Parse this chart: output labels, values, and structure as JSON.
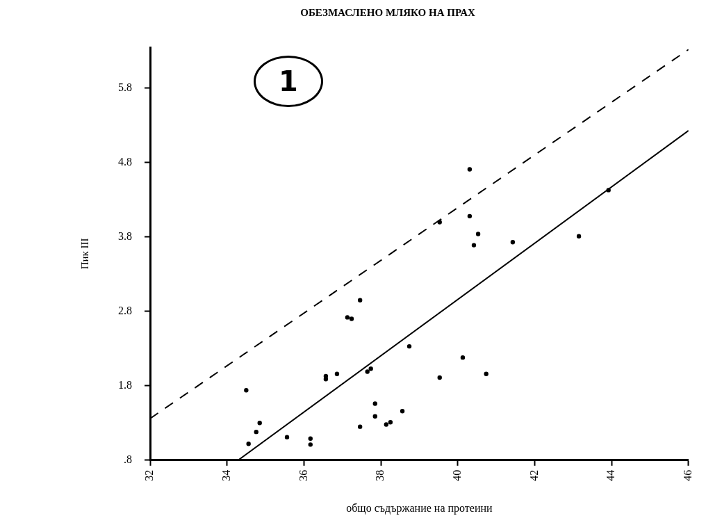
{
  "chart_data": {
    "type": "scatter",
    "title": "ОБЕЗМАСЛЕНО МЛЯКО НА ПРАХ",
    "xlabel": "общо съдържание на протеини",
    "ylabel": "Пик III",
    "annotations": [
      "1"
    ],
    "xlim": [
      32,
      46
    ],
    "xticks": [
      32,
      34,
      36,
      38,
      40,
      42,
      44,
      46
    ],
    "ylim": [
      0.8,
      6.35
    ],
    "yticks": [
      {
        "value": 0.8,
        "label": ".8"
      },
      1.8,
      2.8,
      3.8,
      4.8,
      5.8
    ],
    "grid": false,
    "legend": false,
    "marker": "circle",
    "series": [
      {
        "color": "#000000",
        "x": [
          34.5,
          34.56,
          34.76,
          34.85,
          35.56,
          36.17,
          36.17,
          36.57,
          36.57,
          36.86,
          37.13,
          37.24,
          37.46,
          37.46,
          37.65,
          37.74,
          37.85,
          37.85,
          38.14,
          38.25,
          38.56,
          38.74,
          39.53,
          40.13,
          40.74,
          39.53,
          40.31,
          40.31,
          40.42,
          40.53,
          41.43,
          43.15,
          43.92
        ],
        "values": [
          1.74,
          1.02,
          1.18,
          1.3,
          1.11,
          1.09,
          1.01,
          1.93,
          1.89,
          1.96,
          2.72,
          2.7,
          2.95,
          1.25,
          1.99,
          2.03,
          1.56,
          1.39,
          1.28,
          1.31,
          1.46,
          2.33,
          1.91,
          2.18,
          1.96,
          4.0,
          4.71,
          4.08,
          3.69,
          3.84,
          3.73,
          3.81,
          4.43
        ]
      },
      {
        "type": "line",
        "color": "#000000",
        "line_style": "solid",
        "marker": "none",
        "x": [
          34.29,
          46
        ],
        "values": [
          0.8,
          5.23
        ]
      },
      {
        "type": "line",
        "color": "#000000",
        "line_style": "dashed",
        "marker": "none",
        "x": [
          32,
          46
        ],
        "values": [
          1.36,
          6.32
        ]
      }
    ]
  }
}
